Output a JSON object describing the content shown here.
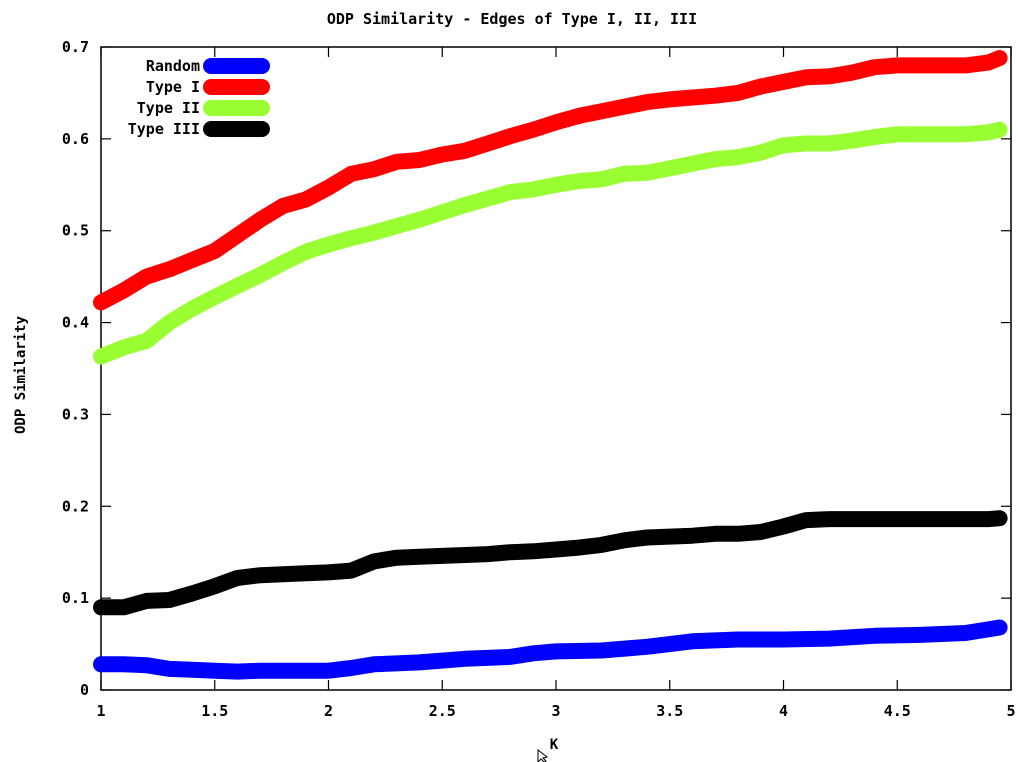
{
  "chart_data": {
    "type": "line",
    "title": "ODP Similarity - Edges of Type I, II, III",
    "xlabel": "K",
    "ylabel": "ODP Similarity",
    "xlim": [
      1,
      5
    ],
    "ylim": [
      0,
      0.7
    ],
    "x_ticks": [
      1,
      1.5,
      2,
      2.5,
      3,
      3.5,
      4,
      4.5,
      5
    ],
    "x_tick_labels": [
      "1",
      "1.5",
      "2",
      "2.5",
      "3",
      "3.5",
      "4",
      "4.5",
      "5"
    ],
    "y_ticks": [
      0,
      0.1,
      0.2,
      0.3,
      0.4,
      0.5,
      0.6,
      0.7
    ],
    "y_tick_labels": [
      "0",
      "0.1",
      "0.2",
      "0.3",
      "0.4",
      "0.5",
      "0.6",
      "0.7"
    ],
    "grid": false,
    "legend_position": "top-left",
    "series": [
      {
        "name": "Random",
        "color": "#0000ff",
        "x": [
          1.0,
          1.1,
          1.2,
          1.3,
          1.4,
          1.5,
          1.6,
          1.7,
          1.8,
          1.9,
          2.0,
          2.1,
          2.2,
          2.4,
          2.6,
          2.8,
          2.9,
          3.0,
          3.2,
          3.4,
          3.6,
          3.8,
          4.0,
          4.2,
          4.4,
          4.6,
          4.8,
          4.9,
          4.95
        ],
        "y": [
          0.028,
          0.028,
          0.027,
          0.023,
          0.022,
          0.021,
          0.02,
          0.021,
          0.021,
          0.021,
          0.021,
          0.024,
          0.028,
          0.03,
          0.034,
          0.036,
          0.04,
          0.042,
          0.043,
          0.047,
          0.053,
          0.055,
          0.055,
          0.056,
          0.059,
          0.06,
          0.062,
          0.066,
          0.068
        ]
      },
      {
        "name": "Type I",
        "color": "#ff0000",
        "x": [
          1.0,
          1.1,
          1.2,
          1.3,
          1.4,
          1.5,
          1.6,
          1.7,
          1.8,
          1.9,
          2.0,
          2.1,
          2.2,
          2.3,
          2.4,
          2.5,
          2.6,
          2.7,
          2.8,
          2.9,
          3.0,
          3.1,
          3.2,
          3.3,
          3.4,
          3.5,
          3.6,
          3.7,
          3.8,
          3.9,
          4.0,
          4.1,
          4.2,
          4.3,
          4.4,
          4.5,
          4.6,
          4.7,
          4.8,
          4.9,
          4.95
        ],
        "y": [
          0.422,
          0.435,
          0.45,
          0.458,
          0.468,
          0.478,
          0.495,
          0.512,
          0.527,
          0.534,
          0.547,
          0.562,
          0.567,
          0.575,
          0.577,
          0.583,
          0.587,
          0.595,
          0.603,
          0.61,
          0.618,
          0.625,
          0.63,
          0.635,
          0.64,
          0.643,
          0.645,
          0.647,
          0.65,
          0.657,
          0.662,
          0.667,
          0.668,
          0.672,
          0.678,
          0.68,
          0.68,
          0.68,
          0.68,
          0.683,
          0.688
        ]
      },
      {
        "name": "Type II",
        "color": "#99ff33",
        "x": [
          1.0,
          1.1,
          1.2,
          1.3,
          1.4,
          1.5,
          1.6,
          1.7,
          1.8,
          1.9,
          2.0,
          2.1,
          2.2,
          2.3,
          2.4,
          2.5,
          2.6,
          2.7,
          2.8,
          2.9,
          3.0,
          3.1,
          3.2,
          3.3,
          3.4,
          3.5,
          3.6,
          3.7,
          3.8,
          3.9,
          4.0,
          4.1,
          4.2,
          4.3,
          4.4,
          4.5,
          4.6,
          4.7,
          4.8,
          4.9,
          4.95
        ],
        "y": [
          0.363,
          0.373,
          0.38,
          0.4,
          0.415,
          0.428,
          0.44,
          0.452,
          0.465,
          0.477,
          0.485,
          0.492,
          0.498,
          0.505,
          0.512,
          0.52,
          0.528,
          0.535,
          0.542,
          0.545,
          0.55,
          0.554,
          0.556,
          0.562,
          0.563,
          0.568,
          0.573,
          0.578,
          0.58,
          0.585,
          0.593,
          0.595,
          0.595,
          0.598,
          0.602,
          0.605,
          0.605,
          0.605,
          0.605,
          0.607,
          0.61
        ]
      },
      {
        "name": "Type III",
        "color": "#000000",
        "x": [
          1.0,
          1.1,
          1.2,
          1.3,
          1.4,
          1.5,
          1.6,
          1.7,
          1.8,
          1.9,
          2.0,
          2.1,
          2.2,
          2.3,
          2.4,
          2.5,
          2.6,
          2.7,
          2.8,
          2.9,
          3.0,
          3.1,
          3.2,
          3.3,
          3.4,
          3.5,
          3.6,
          3.7,
          3.8,
          3.9,
          4.0,
          4.1,
          4.2,
          4.3,
          4.4,
          4.5,
          4.6,
          4.7,
          4.8,
          4.9,
          4.95
        ],
        "y": [
          0.09,
          0.09,
          0.097,
          0.098,
          0.105,
          0.113,
          0.122,
          0.125,
          0.126,
          0.127,
          0.128,
          0.13,
          0.14,
          0.144,
          0.145,
          0.146,
          0.147,
          0.148,
          0.15,
          0.151,
          0.153,
          0.155,
          0.158,
          0.163,
          0.166,
          0.167,
          0.168,
          0.17,
          0.17,
          0.172,
          0.178,
          0.185,
          0.186,
          0.186,
          0.186,
          0.186,
          0.186,
          0.186,
          0.186,
          0.186,
          0.187
        ]
      }
    ]
  }
}
